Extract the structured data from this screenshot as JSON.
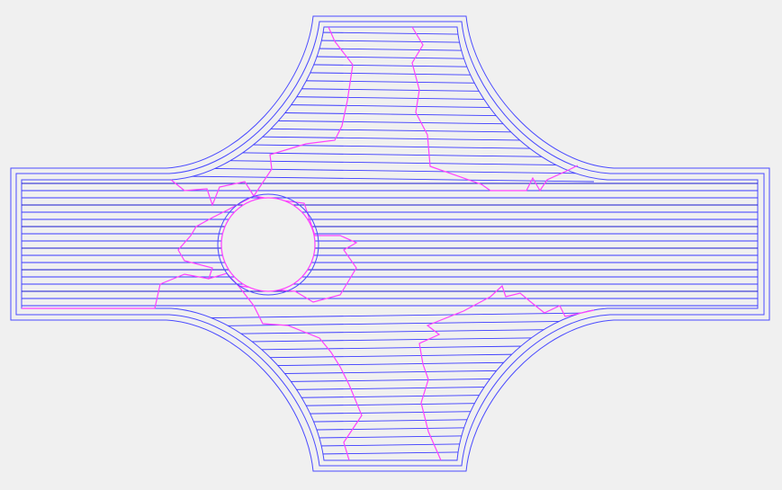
{
  "canvas": {
    "background": "#f0f0f0"
  },
  "toolpath": {
    "contour_color": "#4040ff",
    "infill_color": "#3a3aff",
    "infill_dark_color": "#1a1ad0",
    "region_boundary_color": "#ff40ff",
    "hole": "circular-hole"
  }
}
